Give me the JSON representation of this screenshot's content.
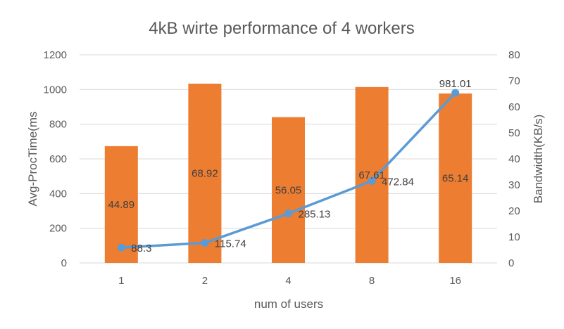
{
  "chart_data": {
    "type": "bar",
    "title": "4kB wirte performance  of  4 workers",
    "xlabel": "num of users",
    "ylabel": "Avg-ProcTime(ms",
    "y2label": "Bandwidth(KB/s)",
    "categories": [
      "1",
      "2",
      "4",
      "8",
      "16"
    ],
    "ylim": [
      0,
      1200
    ],
    "y_ticks": [
      "0",
      "200",
      "400",
      "600",
      "800",
      "1000",
      "1200"
    ],
    "y2lim": [
      0,
      80
    ],
    "y2_ticks": [
      "0",
      "10",
      "20",
      "30",
      "40",
      "50",
      "60",
      "70",
      "80"
    ],
    "grid": true,
    "legend": "none",
    "series": [
      {
        "type": "bar",
        "axis": "right",
        "color": "#ed7d31",
        "values": [
          44.89,
          68.92,
          56.05,
          67.61,
          65.14
        ],
        "labels": [
          "44.89",
          "68.92",
          "56.05",
          "67.61",
          "65.14"
        ]
      },
      {
        "type": "line",
        "axis": "left",
        "color": "#5b9bd5",
        "values": [
          88.3,
          115.74,
          285.13,
          472.84,
          981.01
        ],
        "labels": [
          "88.3",
          "115.74",
          "285.13",
          "472.84",
          "981.01"
        ]
      }
    ]
  }
}
